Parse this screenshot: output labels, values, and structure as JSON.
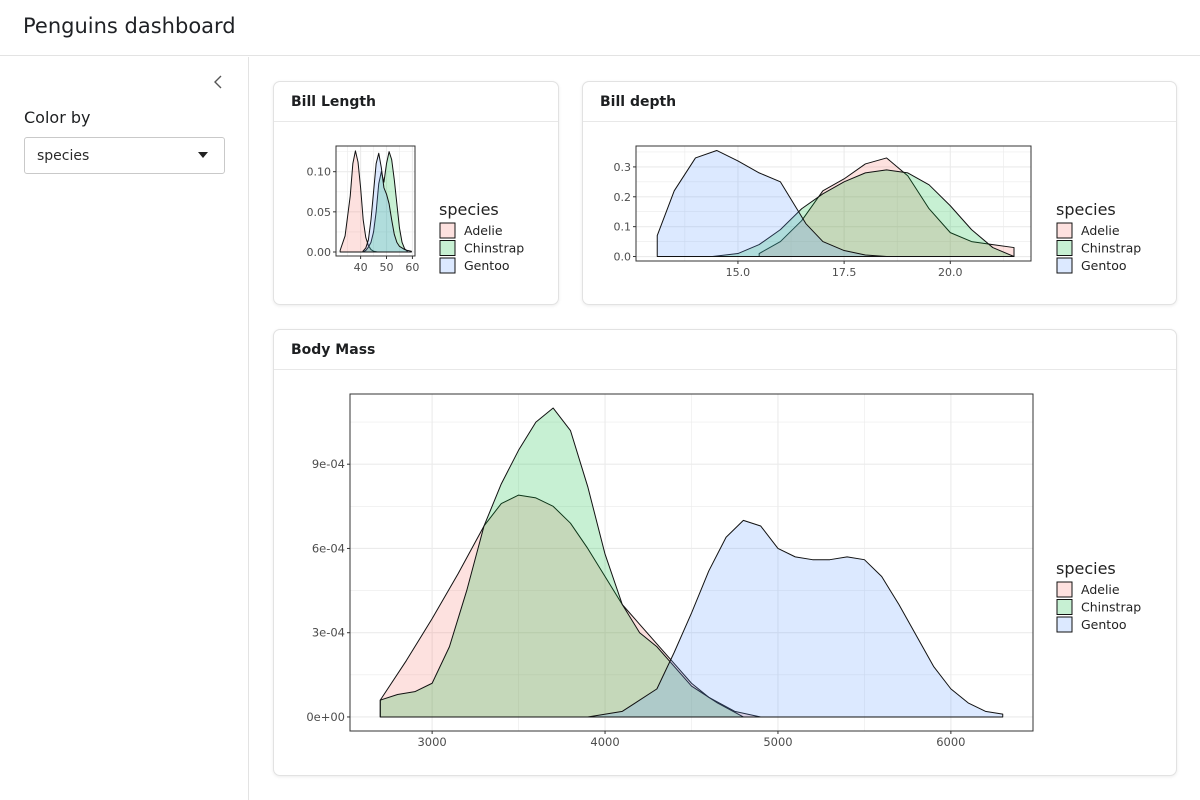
{
  "app": {
    "title": "Penguins dashboard"
  },
  "sidebar": {
    "collapse_icon": "chevron-left-icon",
    "color_by": {
      "label": "Color by",
      "value": "species"
    }
  },
  "colors": {
    "Adelie": "#F8766D",
    "Chinstrap": "#00BA38",
    "Gentoo": "#619CFF"
  },
  "cards": {
    "bill_length": {
      "title": "Bill Length"
    },
    "bill_depth": {
      "title": "Bill depth"
    },
    "body_mass": {
      "title": "Body Mass"
    }
  },
  "chart_data": [
    {
      "id": "bill_length",
      "type": "area",
      "xlim": [
        30.5,
        61
      ],
      "ylim": [
        -0.005,
        0.132
      ],
      "xticks": [
        40,
        50,
        60
      ],
      "xtick_labels": [
        "40",
        "50",
        "60"
      ],
      "yticks": [
        0,
        0.05,
        0.1
      ],
      "ytick_labels": [
        "0.00",
        "0.05",
        "0.10"
      ],
      "grid": true,
      "legend_title": "species",
      "legend_position": "right",
      "series": [
        {
          "name": "Adelie",
          "x": [
            32.1,
            34,
            36,
            37,
            38,
            39,
            40,
            41,
            42,
            43,
            44,
            45,
            46.5
          ],
          "y": [
            0.002,
            0.02,
            0.07,
            0.11,
            0.126,
            0.112,
            0.08,
            0.04,
            0.018,
            0.008,
            0.003,
            0.001,
            0
          ]
        },
        {
          "name": "Chinstrap",
          "x": [
            40.9,
            42,
            43,
            44,
            45,
            46,
            47,
            48,
            49,
            50,
            51,
            52,
            53,
            54,
            55,
            56,
            57,
            58.0
          ],
          "y": [
            0,
            0.002,
            0.006,
            0.012,
            0.025,
            0.05,
            0.085,
            0.1,
            0.087,
            0.11,
            0.125,
            0.115,
            0.09,
            0.06,
            0.03,
            0.012,
            0.004,
            0.001
          ]
        },
        {
          "name": "Gentoo",
          "x": [
            40.9,
            42,
            43,
            44,
            45,
            46,
            47,
            48,
            49,
            50,
            51,
            52,
            53,
            54,
            55,
            56,
            57,
            58,
            59.6
          ],
          "y": [
            0.001,
            0.005,
            0.015,
            0.04,
            0.075,
            0.11,
            0.123,
            0.105,
            0.08,
            0.072,
            0.06,
            0.04,
            0.022,
            0.012,
            0.007,
            0.005,
            0.003,
            0.002,
            0.001
          ]
        }
      ]
    },
    {
      "id": "bill_depth",
      "type": "area",
      "xlim": [
        12.6,
        21.9
      ],
      "ylim": [
        -0.015,
        0.37
      ],
      "xticks": [
        15,
        17.5,
        20
      ],
      "xtick_labels": [
        "15.0",
        "17.5",
        "20.0"
      ],
      "yticks": [
        0,
        0.1,
        0.2,
        0.3
      ],
      "ytick_labels": [
        "0.0",
        "0.1",
        "0.2",
        "0.3"
      ],
      "grid": true,
      "legend_title": "species",
      "legend_position": "right",
      "series": [
        {
          "name": "Adelie",
          "x": [
            15.5,
            16,
            16.5,
            17,
            17.5,
            18,
            18.5,
            19,
            19.5,
            20,
            20.5,
            21,
            21.5
          ],
          "y": [
            0.01,
            0.05,
            0.12,
            0.22,
            0.26,
            0.31,
            0.33,
            0.27,
            0.16,
            0.08,
            0.05,
            0.04,
            0.03
          ]
        },
        {
          "name": "Chinstrap",
          "x": [
            14.4,
            15,
            15.5,
            16,
            16.5,
            17,
            17.5,
            18,
            18.5,
            19,
            19.5,
            20,
            20.5,
            21,
            21.5
          ],
          "y": [
            0.0,
            0.01,
            0.04,
            0.09,
            0.16,
            0.21,
            0.25,
            0.28,
            0.29,
            0.28,
            0.24,
            0.17,
            0.09,
            0.03,
            0.0
          ]
        },
        {
          "name": "Gentoo",
          "x": [
            13.1,
            13.5,
            14,
            14.5,
            15,
            15.5,
            16,
            16.3,
            16.6,
            17,
            17.5,
            18,
            18.5
          ],
          "y": [
            0.07,
            0.22,
            0.33,
            0.355,
            0.32,
            0.28,
            0.25,
            0.18,
            0.11,
            0.05,
            0.02,
            0.005,
            0
          ]
        }
      ]
    },
    {
      "id": "body_mass",
      "type": "area",
      "xlim": [
        2525,
        6475
      ],
      "ylim": [
        -5e-05,
        0.00115
      ],
      "xticks": [
        3000,
        4000,
        5000,
        6000
      ],
      "xtick_labels": [
        "3000",
        "4000",
        "5000",
        "6000"
      ],
      "yticks": [
        0,
        0.0003,
        0.0006,
        0.0009
      ],
      "ytick_labels": [
        "0e+00",
        "3e-04",
        "6e-04",
        "9e-04"
      ],
      "grid": true,
      "legend_title": "species",
      "legend_position": "right",
      "series": [
        {
          "name": "Adelie",
          "x": [
            2700,
            2850,
            3000,
            3150,
            3300,
            3400,
            3500,
            3600,
            3700,
            3800,
            3900,
            4000,
            4100,
            4200,
            4300,
            4400,
            4500,
            4600,
            4750,
            4900
          ],
          "y": [
            6e-05,
            0.0002,
            0.00035,
            0.00051,
            0.00068,
            0.00076,
            0.00079,
            0.00078,
            0.00075,
            0.00069,
            0.0006,
            0.0005,
            0.0004,
            0.00033,
            0.00026,
            0.00019,
            0.00012,
            7e-05,
            2e-05,
            0
          ]
        },
        {
          "name": "Chinstrap",
          "x": [
            2700,
            2800,
            2900,
            3000,
            3100,
            3200,
            3300,
            3400,
            3500,
            3600,
            3700,
            3800,
            3900,
            4000,
            4100,
            4200,
            4300,
            4400,
            4500,
            4650,
            4800
          ],
          "y": [
            6e-05,
            8e-05,
            9e-05,
            0.00012,
            0.00025,
            0.00045,
            0.00068,
            0.00083,
            0.00095,
            0.00105,
            0.0011,
            0.00102,
            0.00082,
            0.00058,
            0.0004,
            0.0003,
            0.00025,
            0.00018,
            0.00011,
            5e-05,
            0
          ]
        },
        {
          "name": "Gentoo",
          "x": [
            3900,
            4100,
            4300,
            4400,
            4500,
            4600,
            4700,
            4800,
            4900,
            5000,
            5100,
            5200,
            5300,
            5400,
            5500,
            5600,
            5700,
            5800,
            5900,
            6000,
            6100,
            6200,
            6300
          ],
          "y": [
            0,
            2e-05,
            0.0001,
            0.00023,
            0.00037,
            0.00052,
            0.00064,
            0.0007,
            0.00068,
            0.0006,
            0.00057,
            0.00056,
            0.00056,
            0.00057,
            0.00056,
            0.0005,
            0.0004,
            0.00029,
            0.00018,
            0.0001,
            5e-05,
            2e-05,
            1e-05
          ]
        }
      ]
    }
  ]
}
